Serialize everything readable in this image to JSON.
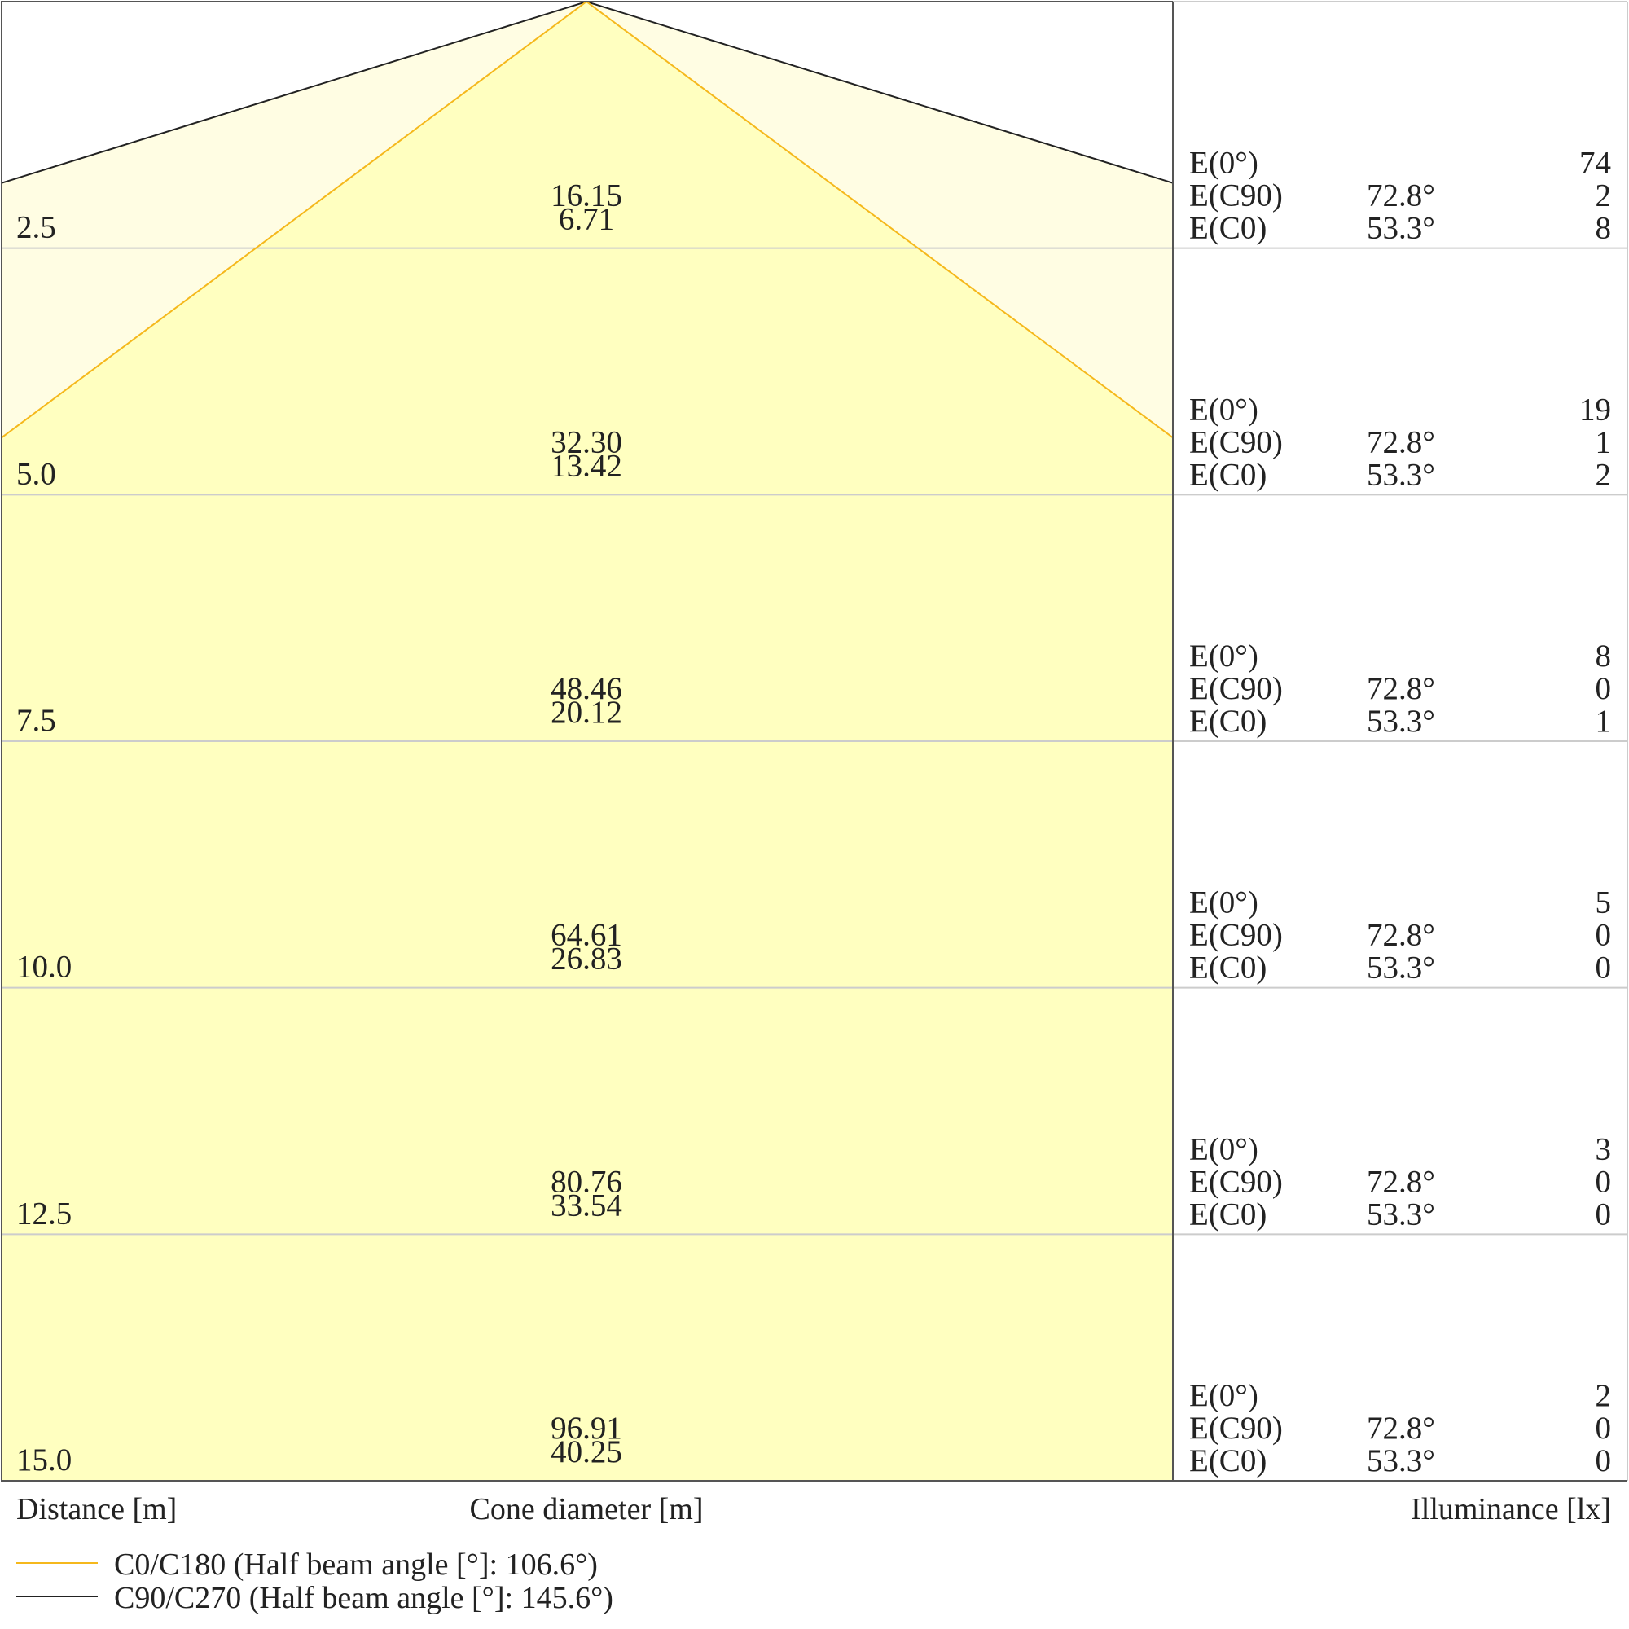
{
  "chart_data": {
    "type": "beam-cone",
    "xlabel": "Distance [m]",
    "center_label": "Cone diameter [m]",
    "ylabel": "Illuminance [lx]",
    "colors": {
      "c0": "#f5b81c",
      "c90": "#222222",
      "fill_c0": "#ffffc0",
      "fill_c90": "#fffde3",
      "grid": "#cccccc"
    },
    "series": [
      {
        "name": "C0/C180 (Half beam angle [°]: 106.6°)",
        "half_beam_angle": 106.6,
        "color": "#f5b81c"
      },
      {
        "name": "C90/C270 (Half beam angle [°]: 145.6°)",
        "half_beam_angle": 145.6,
        "color": "#222222"
      }
    ],
    "rows": [
      {
        "distance": "2.5",
        "cone_c90": "16.15",
        "cone_c0": "6.71",
        "e_label": "E(0°)",
        "e_value": "74",
        "c90_label": "E(C90)",
        "c90_angle": "72.8°",
        "c90_value": "2",
        "c0_label": "E(C0)",
        "c0_angle": "53.3°",
        "c0_value": "8"
      },
      {
        "distance": "5.0",
        "cone_c90": "32.30",
        "cone_c0": "13.42",
        "e_label": "E(0°)",
        "e_value": "19",
        "c90_label": "E(C90)",
        "c90_angle": "72.8°",
        "c90_value": "1",
        "c0_label": "E(C0)",
        "c0_angle": "53.3°",
        "c0_value": "2"
      },
      {
        "distance": "7.5",
        "cone_c90": "48.46",
        "cone_c0": "20.12",
        "e_label": "E(0°)",
        "e_value": "8",
        "c90_label": "E(C90)",
        "c90_angle": "72.8°",
        "c90_value": "0",
        "c0_label": "E(C0)",
        "c0_angle": "53.3°",
        "c0_value": "1"
      },
      {
        "distance": "10.0",
        "cone_c90": "64.61",
        "cone_c0": "26.83",
        "e_label": "E(0°)",
        "e_value": "5",
        "c90_label": "E(C90)",
        "c90_angle": "72.8°",
        "c90_value": "0",
        "c0_label": "E(C0)",
        "c0_angle": "53.3°",
        "c0_value": "0"
      },
      {
        "distance": "12.5",
        "cone_c90": "80.76",
        "cone_c0": "33.54",
        "e_label": "E(0°)",
        "e_value": "3",
        "c90_label": "E(C90)",
        "c90_angle": "72.8°",
        "c90_value": "0",
        "c0_label": "E(C0)",
        "c0_angle": "53.3°",
        "c0_value": "0"
      },
      {
        "distance": "15.0",
        "cone_c90": "96.91",
        "cone_c0": "40.25",
        "e_label": "E(0°)",
        "e_value": "2",
        "c90_label": "E(C90)",
        "c90_angle": "72.8°",
        "c90_value": "0",
        "c0_label": "E(C0)",
        "c0_angle": "53.3°",
        "c0_value": "0"
      }
    ]
  }
}
